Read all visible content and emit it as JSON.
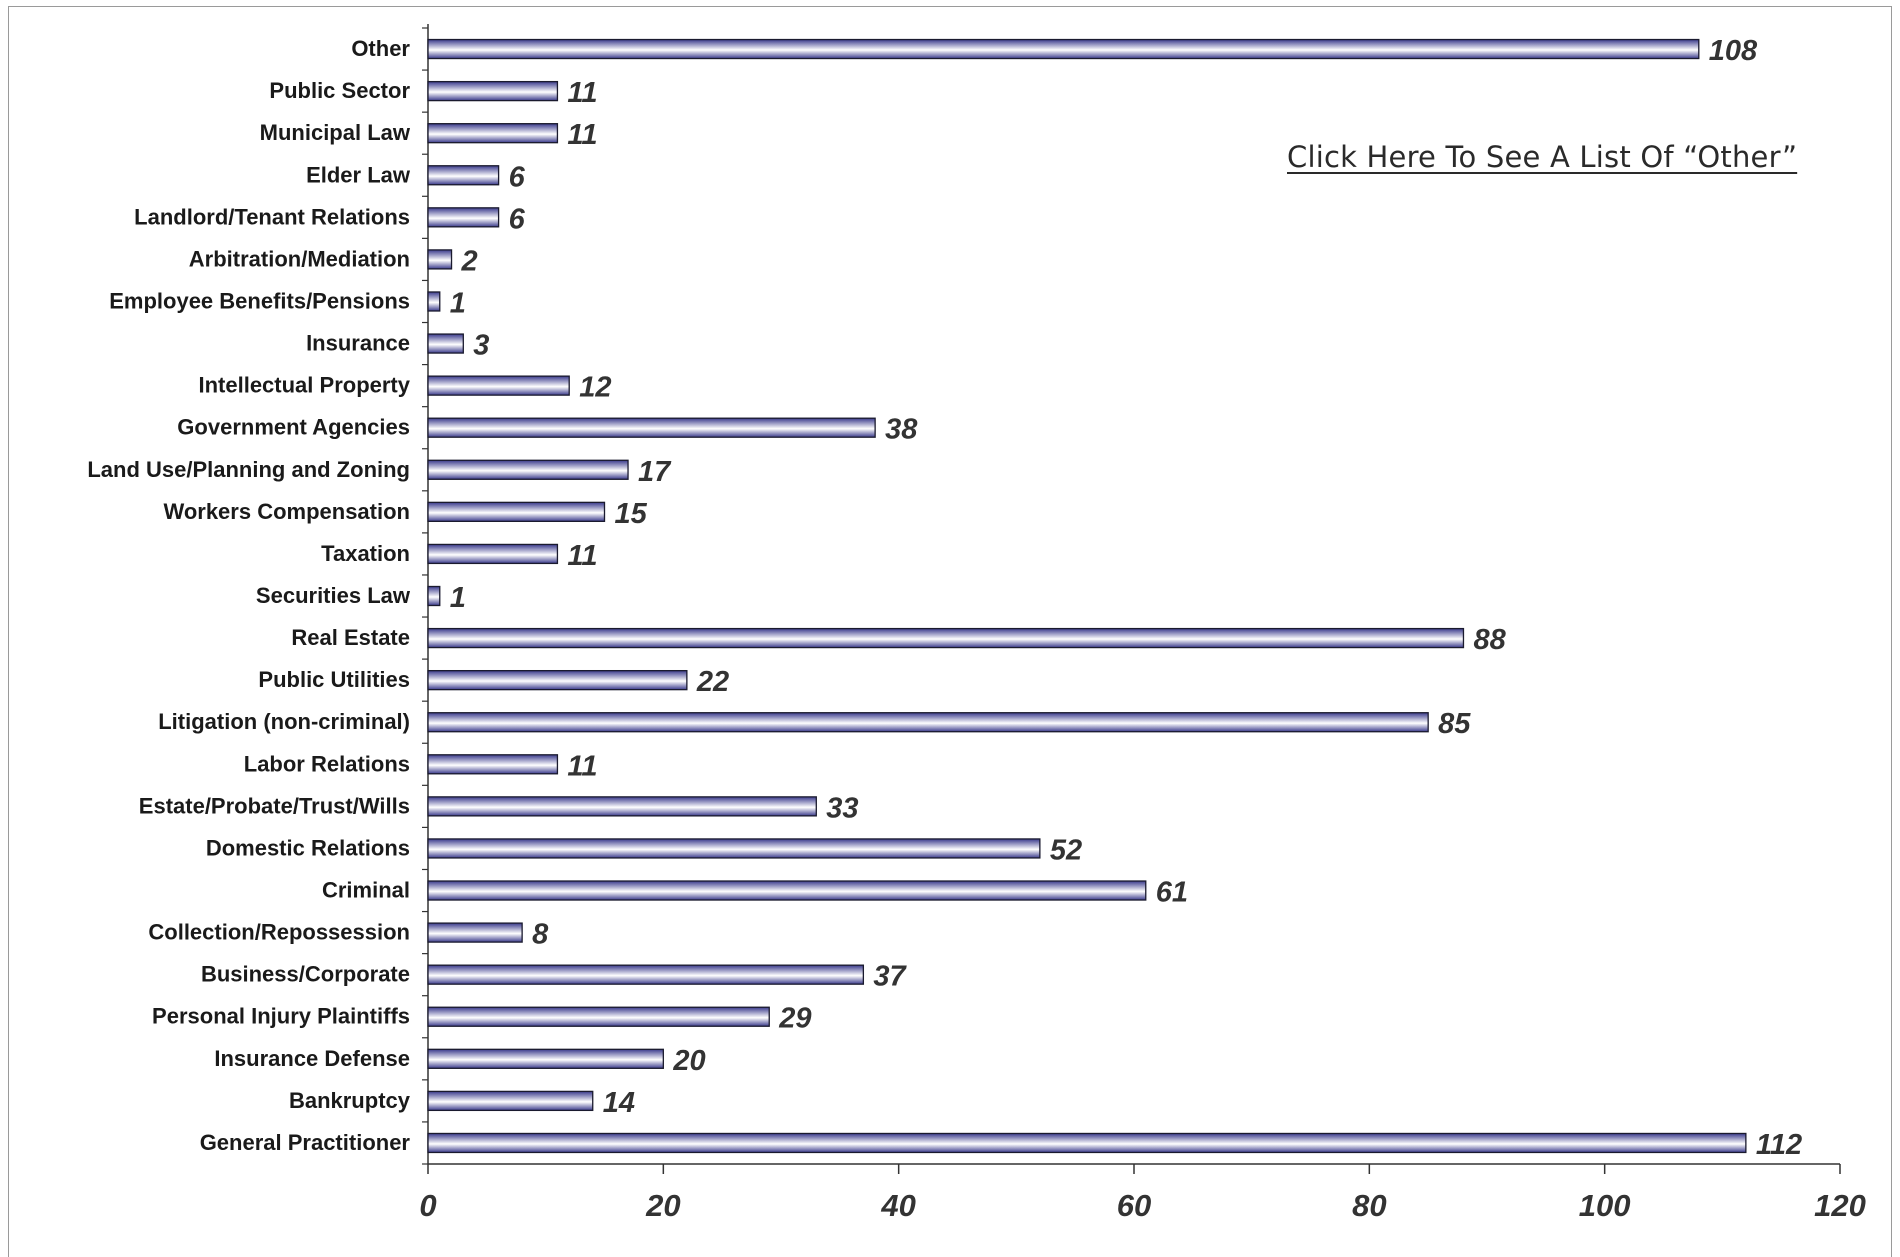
{
  "link": {
    "text": "Click Here To See A List Of  “Other”"
  },
  "chart_data": {
    "type": "bar",
    "orientation": "horizontal",
    "categories": [
      "Other",
      "Public Sector",
      "Municipal Law",
      "Elder Law",
      "Landlord/Tenant Relations",
      "Arbitration/Mediation",
      "Employee Benefits/Pensions",
      "Insurance",
      "Intellectual Property",
      "Government Agencies",
      "Land Use/Planning and Zoning",
      "Workers Compensation",
      "Taxation",
      "Securities Law",
      "Real Estate",
      "Public Utilities",
      "Litigation (non-criminal)",
      "Labor Relations",
      "Estate/Probate/Trust/Wills",
      "Domestic Relations",
      "Criminal",
      "Collection/Repossession",
      "Business/Corporate",
      "Personal Injury Plaintiffs",
      "Insurance Defense",
      "Bankruptcy",
      "General Practitioner"
    ],
    "values": [
      108,
      11,
      11,
      6,
      6,
      2,
      1,
      3,
      12,
      38,
      17,
      15,
      11,
      1,
      88,
      22,
      85,
      11,
      33,
      52,
      61,
      8,
      37,
      29,
      20,
      14,
      112
    ],
    "xticks": [
      "0",
      "20",
      "40",
      "60",
      "80",
      "100",
      "120"
    ],
    "xlim": [
      0,
      120
    ],
    "title": "",
    "xlabel": "",
    "ylabel": "",
    "grid": false,
    "colors": {
      "bar_dark": "#3a3a8c",
      "bar_light": "#ffffff",
      "bar_outline": "#1a1a2e",
      "axis": "#333333"
    }
  }
}
